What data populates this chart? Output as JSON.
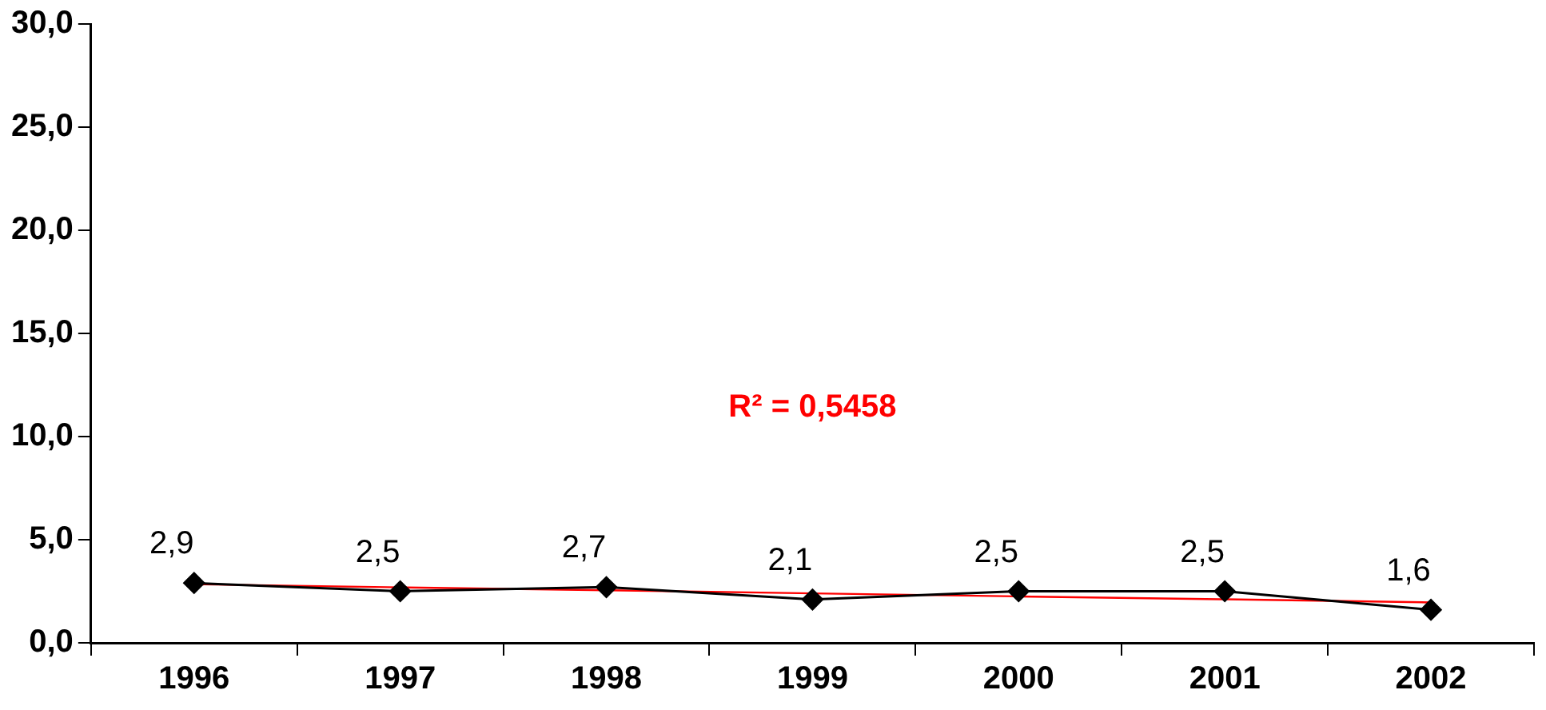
{
  "chart_data": {
    "type": "line",
    "categories": [
      "1996",
      "1997",
      "1998",
      "1999",
      "2000",
      "2001",
      "2002"
    ],
    "series": [
      {
        "color": "#000000",
        "values": [
          2.9,
          2.5,
          2.7,
          2.1,
          2.5,
          2.5,
          1.6
        ],
        "value_labels": [
          "2,9",
          "2,5",
          "2,7",
          "2,1",
          "2,5",
          "2,5",
          "1,6"
        ],
        "marker": "diamond"
      },
      {
        "color": "#ff0000",
        "values": [
          2.84,
          2.69,
          2.55,
          2.4,
          2.25,
          2.11,
          1.96
        ],
        "marker": "none"
      }
    ],
    "ylim": [
      0,
      30
    ],
    "yticks": [
      {
        "value": 0,
        "label": "0,0"
      },
      {
        "value": 5,
        "label": "5,0"
      },
      {
        "value": 10,
        "label": "10,0"
      },
      {
        "value": 15,
        "label": "15,0"
      },
      {
        "value": 20,
        "label": "20,0"
      },
      {
        "value": 25,
        "label": "25,0"
      },
      {
        "value": 30,
        "label": "30,0"
      }
    ],
    "annotations": [
      "R² = 0,5458"
    ],
    "grid": false,
    "legend": false,
    "line_style": "solid"
  }
}
